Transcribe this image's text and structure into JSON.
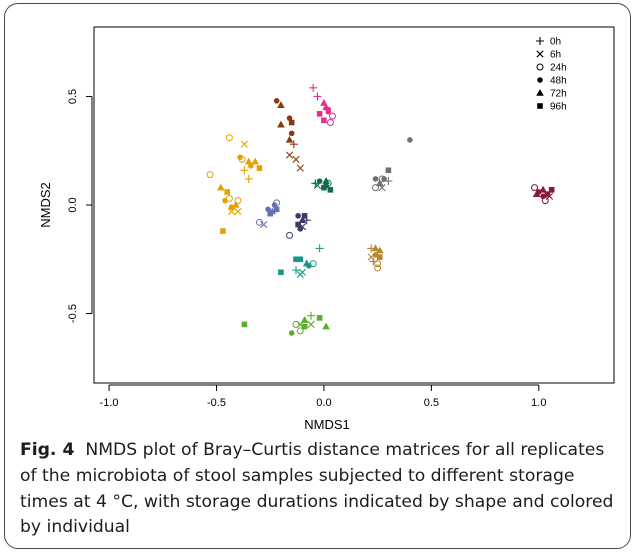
{
  "chart_data": {
    "type": "scatter",
    "xlabel": "NMDS1",
    "ylabel": "NMDS2",
    "xlim": [
      -1.07,
      1.35
    ],
    "ylim": [
      -0.82,
      0.82
    ],
    "x_ticks": [
      "-1.0",
      "-0.5",
      "0.0",
      "0.5",
      "1.0"
    ],
    "y_ticks": [
      "-0.5",
      "0.0",
      "0.5"
    ],
    "grid": false,
    "legend_position": "top-right",
    "legend": [
      {
        "label": "0h",
        "shape": "plus"
      },
      {
        "label": "6h",
        "shape": "cross"
      },
      {
        "label": "24h",
        "shape": "open-circle"
      },
      {
        "label": "48h",
        "shape": "filled-circle"
      },
      {
        "label": "72h",
        "shape": "filled-triangle"
      },
      {
        "label": "96h",
        "shape": "filled-square"
      }
    ],
    "points": [
      {
        "x": -0.05,
        "y": 0.54,
        "s": "plus",
        "c": "#e52e8f"
      },
      {
        "x": -0.03,
        "y": 0.5,
        "s": "plus",
        "c": "#e52e8f"
      },
      {
        "x": 0.0,
        "y": 0.47,
        "s": "triangle",
        "c": "#e52e8f"
      },
      {
        "x": -0.02,
        "y": 0.42,
        "s": "square",
        "c": "#e52e8f"
      },
      {
        "x": 0.0,
        "y": 0.39,
        "s": "square",
        "c": "#e52e8f"
      },
      {
        "x": 0.02,
        "y": 0.44,
        "s": "dot",
        "c": "#e52e8f"
      },
      {
        "x": 0.04,
        "y": 0.41,
        "s": "circle",
        "c": "#e52e8f"
      },
      {
        "x": 0.03,
        "y": 0.38,
        "s": "circle",
        "c": "#e52e8f"
      },
      {
        "x": 0.01,
        "y": 0.45,
        "s": "triangle",
        "c": "#e52e8f"
      },
      {
        "x": 0.02,
        "y": 0.43,
        "s": "dot",
        "c": "#e52e8f"
      },
      {
        "x": -0.22,
        "y": 0.48,
        "s": "dot",
        "c": "#8b3a0f"
      },
      {
        "x": -0.2,
        "y": 0.46,
        "s": "triangle",
        "c": "#8b3a0f"
      },
      {
        "x": -0.16,
        "y": 0.4,
        "s": "dot",
        "c": "#8b3a0f"
      },
      {
        "x": -0.2,
        "y": 0.37,
        "s": "triangle",
        "c": "#8b3a0f"
      },
      {
        "x": -0.15,
        "y": 0.38,
        "s": "square",
        "c": "#8b3a0f"
      },
      {
        "x": -0.16,
        "y": 0.3,
        "s": "triangle",
        "c": "#8b3a0f"
      },
      {
        "x": -0.14,
        "y": 0.28,
        "s": "plus",
        "c": "#8b3a0f"
      },
      {
        "x": -0.16,
        "y": 0.23,
        "s": "cross",
        "c": "#8b3a0f"
      },
      {
        "x": -0.13,
        "y": 0.21,
        "s": "cross",
        "c": "#8b3a0f"
      },
      {
        "x": -0.11,
        "y": 0.17,
        "s": "cross",
        "c": "#8b3a0f"
      },
      {
        "x": -0.15,
        "y": 0.33,
        "s": "dot",
        "c": "#8b3a0f"
      },
      {
        "x": -0.44,
        "y": 0.31,
        "s": "circle",
        "c": "#e8a000"
      },
      {
        "x": -0.53,
        "y": 0.14,
        "s": "circle",
        "c": "#e8a000"
      },
      {
        "x": -0.37,
        "y": 0.28,
        "s": "cross",
        "c": "#e8a000"
      },
      {
        "x": -0.38,
        "y": 0.21,
        "s": "circle",
        "c": "#e8a000"
      },
      {
        "x": -0.35,
        "y": 0.2,
        "s": "triangle",
        "c": "#e8a000"
      },
      {
        "x": -0.32,
        "y": 0.2,
        "s": "triangle",
        "c": "#e8a000"
      },
      {
        "x": -0.34,
        "y": 0.18,
        "s": "dot",
        "c": "#e8a000"
      },
      {
        "x": -0.3,
        "y": 0.17,
        "s": "square",
        "c": "#e8a000"
      },
      {
        "x": -0.37,
        "y": 0.16,
        "s": "plus",
        "c": "#e8a000"
      },
      {
        "x": -0.35,
        "y": 0.12,
        "s": "plus",
        "c": "#e8a000"
      },
      {
        "x": -0.39,
        "y": 0.22,
        "s": "dot",
        "c": "#e8a000"
      },
      {
        "x": -0.48,
        "y": 0.08,
        "s": "triangle",
        "c": "#e8a000"
      },
      {
        "x": -0.45,
        "y": 0.06,
        "s": "square",
        "c": "#e8a000"
      },
      {
        "x": -0.46,
        "y": 0.02,
        "s": "dot",
        "c": "#e8a000"
      },
      {
        "x": -0.43,
        "y": -0.01,
        "s": "dot",
        "c": "#e8a000"
      },
      {
        "x": -0.41,
        "y": 0.0,
        "s": "triangle",
        "c": "#e8a000"
      },
      {
        "x": -0.4,
        "y": -0.03,
        "s": "cross",
        "c": "#e8a000"
      },
      {
        "x": -0.43,
        "y": -0.03,
        "s": "cross",
        "c": "#e8a000"
      },
      {
        "x": -0.4,
        "y": 0.02,
        "s": "circle",
        "c": "#e8a000"
      },
      {
        "x": -0.47,
        "y": -0.12,
        "s": "square",
        "c": "#e8a000"
      },
      {
        "x": -0.44,
        "y": 0.03,
        "s": "circle",
        "c": "#e8a000"
      },
      {
        "x": -0.26,
        "y": -0.02,
        "s": "dot",
        "c": "#6a6fb0"
      },
      {
        "x": -0.24,
        "y": -0.03,
        "s": "triangle",
        "c": "#6a6fb0"
      },
      {
        "x": -0.22,
        "y": -0.02,
        "s": "square",
        "c": "#6a6fb0"
      },
      {
        "x": -0.23,
        "y": 0.0,
        "s": "dot",
        "c": "#6a6fb0"
      },
      {
        "x": -0.22,
        "y": 0.01,
        "s": "circle",
        "c": "#6a6fb0"
      },
      {
        "x": -0.28,
        "y": -0.09,
        "s": "cross",
        "c": "#6a6fb0"
      },
      {
        "x": -0.3,
        "y": -0.08,
        "s": "circle",
        "c": "#6a6fb0"
      },
      {
        "x": -0.25,
        "y": -0.04,
        "s": "square",
        "c": "#6a6fb0"
      },
      {
        "x": -0.12,
        "y": -0.05,
        "s": "dot",
        "c": "#3a3a6e"
      },
      {
        "x": -0.1,
        "y": -0.07,
        "s": "triangle",
        "c": "#3a3a6e"
      },
      {
        "x": -0.12,
        "y": -0.09,
        "s": "square",
        "c": "#3a3a6e"
      },
      {
        "x": -0.08,
        "y": -0.07,
        "s": "plus",
        "c": "#3a3a6e"
      },
      {
        "x": -0.1,
        "y": -0.1,
        "s": "cross",
        "c": "#3a3a6e"
      },
      {
        "x": -0.11,
        "y": -0.11,
        "s": "dot",
        "c": "#3a3a6e"
      },
      {
        "x": -0.16,
        "y": -0.14,
        "s": "circle",
        "c": "#3a3a6e"
      },
      {
        "x": -0.09,
        "y": -0.05,
        "s": "square",
        "c": "#3a3a6e"
      },
      {
        "x": -0.04,
        "y": 0.1,
        "s": "plus",
        "c": "#0f6b4a"
      },
      {
        "x": -0.02,
        "y": 0.11,
        "s": "dot",
        "c": "#0f6b4a"
      },
      {
        "x": 0.01,
        "y": 0.11,
        "s": "triangle",
        "c": "#0f6b4a"
      },
      {
        "x": 0.0,
        "y": 0.08,
        "s": "square",
        "c": "#0f6b4a"
      },
      {
        "x": 0.03,
        "y": 0.07,
        "s": "square",
        "c": "#0f6b4a"
      },
      {
        "x": 0.02,
        "y": 0.1,
        "s": "circle",
        "c": "#0f6b4a"
      },
      {
        "x": -0.03,
        "y": 0.09,
        "s": "cross",
        "c": "#0f6b4a"
      },
      {
        "x": 0.01,
        "y": 0.09,
        "s": "dot",
        "c": "#0f6b4a"
      },
      {
        "x": 0.24,
        "y": 0.12,
        "s": "dot",
        "c": "#707070"
      },
      {
        "x": 0.26,
        "y": 0.1,
        "s": "triangle",
        "c": "#707070"
      },
      {
        "x": 0.28,
        "y": 0.12,
        "s": "dot",
        "c": "#707070"
      },
      {
        "x": 0.3,
        "y": 0.16,
        "s": "square",
        "c": "#707070"
      },
      {
        "x": 0.3,
        "y": 0.11,
        "s": "plus",
        "c": "#707070"
      },
      {
        "x": 0.27,
        "y": 0.08,
        "s": "cross",
        "c": "#707070"
      },
      {
        "x": 0.24,
        "y": 0.08,
        "s": "circle",
        "c": "#707070"
      },
      {
        "x": 0.27,
        "y": 0.12,
        "s": "circle",
        "c": "#707070"
      },
      {
        "x": 0.4,
        "y": 0.3,
        "s": "dot",
        "c": "#707070"
      },
      {
        "x": 0.22,
        "y": -0.2,
        "s": "plus",
        "c": "#b8862b"
      },
      {
        "x": 0.24,
        "y": -0.2,
        "s": "triangle",
        "c": "#b8862b"
      },
      {
        "x": 0.26,
        "y": -0.21,
        "s": "triangle",
        "c": "#b8862b"
      },
      {
        "x": 0.22,
        "y": -0.24,
        "s": "cross",
        "c": "#b8862b"
      },
      {
        "x": 0.24,
        "y": -0.23,
        "s": "dot",
        "c": "#b8862b"
      },
      {
        "x": 0.26,
        "y": -0.24,
        "s": "square",
        "c": "#b8862b"
      },
      {
        "x": 0.23,
        "y": -0.26,
        "s": "plus",
        "c": "#b8862b"
      },
      {
        "x": 0.25,
        "y": -0.27,
        "s": "circle",
        "c": "#b8862b"
      },
      {
        "x": 0.25,
        "y": -0.29,
        "s": "circle",
        "c": "#b8862b"
      },
      {
        "x": -0.02,
        "y": -0.2,
        "s": "plus",
        "c": "#169a85"
      },
      {
        "x": -0.13,
        "y": -0.25,
        "s": "square",
        "c": "#169a85"
      },
      {
        "x": -0.11,
        "y": -0.25,
        "s": "square",
        "c": "#169a85"
      },
      {
        "x": -0.08,
        "y": -0.27,
        "s": "triangle",
        "c": "#169a85"
      },
      {
        "x": -0.05,
        "y": -0.27,
        "s": "circle",
        "c": "#169a85"
      },
      {
        "x": -0.13,
        "y": -0.3,
        "s": "plus",
        "c": "#169a85"
      },
      {
        "x": -0.1,
        "y": -0.31,
        "s": "cross",
        "c": "#169a85"
      },
      {
        "x": -0.07,
        "y": -0.28,
        "s": "dot",
        "c": "#169a85"
      },
      {
        "x": -0.11,
        "y": -0.32,
        "s": "cross",
        "c": "#169a85"
      },
      {
        "x": -0.2,
        "y": -0.31,
        "s": "square",
        "c": "#169a85"
      },
      {
        "x": -0.06,
        "y": -0.51,
        "s": "plus",
        "c": "#5fab2c"
      },
      {
        "x": -0.02,
        "y": -0.52,
        "s": "square",
        "c": "#5fab2c"
      },
      {
        "x": -0.09,
        "y": -0.53,
        "s": "triangle",
        "c": "#5fab2c"
      },
      {
        "x": -0.11,
        "y": -0.55,
        "s": "cross",
        "c": "#5fab2c"
      },
      {
        "x": -0.13,
        "y": -0.55,
        "s": "circle",
        "c": "#5fab2c"
      },
      {
        "x": -0.09,
        "y": -0.56,
        "s": "square",
        "c": "#5fab2c"
      },
      {
        "x": -0.06,
        "y": -0.55,
        "s": "cross",
        "c": "#5fab2c"
      },
      {
        "x": -0.11,
        "y": -0.58,
        "s": "circle",
        "c": "#5fab2c"
      },
      {
        "x": -0.15,
        "y": -0.59,
        "s": "dot",
        "c": "#5fab2c"
      },
      {
        "x": 0.01,
        "y": -0.56,
        "s": "triangle",
        "c": "#5fab2c"
      },
      {
        "x": -0.37,
        "y": -0.55,
        "s": "square",
        "c": "#5fab2c"
      },
      {
        "x": 0.98,
        "y": 0.08,
        "s": "circle",
        "c": "#8a1646"
      },
      {
        "x": 1.0,
        "y": 0.06,
        "s": "dot",
        "c": "#8a1646"
      },
      {
        "x": 1.02,
        "y": 0.07,
        "s": "triangle",
        "c": "#8a1646"
      },
      {
        "x": 1.04,
        "y": 0.05,
        "s": "square",
        "c": "#8a1646"
      },
      {
        "x": 1.06,
        "y": 0.07,
        "s": "square",
        "c": "#8a1646"
      },
      {
        "x": 1.03,
        "y": 0.02,
        "s": "circle",
        "c": "#8a1646"
      },
      {
        "x": 1.05,
        "y": 0.04,
        "s": "cross",
        "c": "#8a1646"
      },
      {
        "x": 0.99,
        "y": 0.05,
        "s": "triangle",
        "c": "#8a1646"
      },
      {
        "x": 1.02,
        "y": 0.04,
        "s": "dot",
        "c": "#8a1646"
      }
    ]
  },
  "caption": {
    "label": "Fig. 4",
    "text": "NMDS plot of Bray–Curtis distance matrices for all replicates of the microbiota of stool samples subjected to different storage times at 4 °C, with storage durations indicated by shape and colored by individual"
  }
}
